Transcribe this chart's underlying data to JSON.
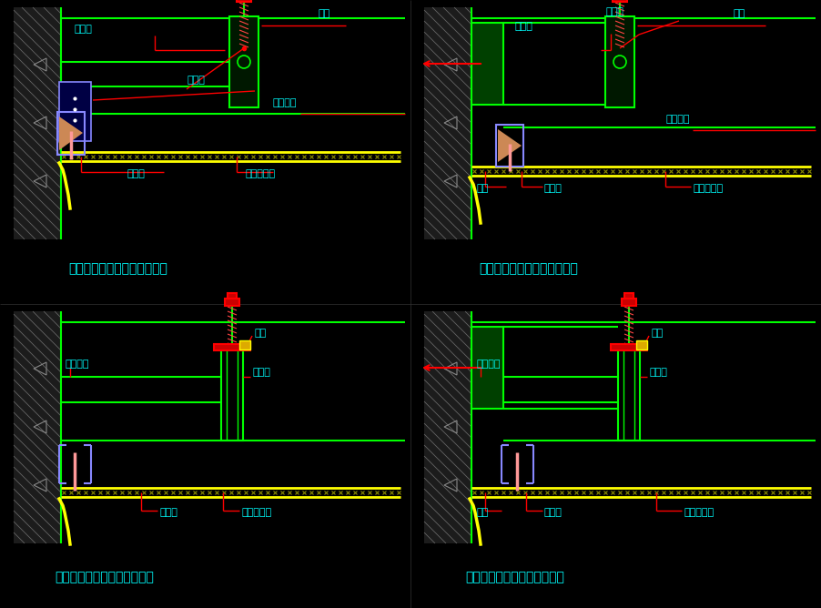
{
  "bg_color": "#000000",
  "wall_color": "#00ff00",
  "red": "#ff0000",
  "yellow": "#ffff00",
  "cyan": "#00ffff",
  "blue_bracket": "#8888ff",
  "pink": "#ff9999",
  "dark_red": "#cc0000",
  "titles": [
    "吊顶阴角处理（垂直主龙骨）",
    "吊顶阴角处理（垂直主龙骨）",
    "吊顶阴角处理（平行主龙骨）",
    "吊顶阴角处理（平行主龙骨）"
  ],
  "labels_tl": {
    "zhulonggu": "主龙骨",
    "dianjian": "吊件",
    "lianjiejian": "连接件",
    "tanhuanglonggu": "撑撑龙骨",
    "cilonggu": "次龙骨",
    "zmsb": "纸面石膏板"
  },
  "labels_tr": {
    "zhulonggu": "主龙骨",
    "dianjian": "吊件",
    "lianjiejian": "连接件",
    "tanhuanglonggu": "撑撑龙骨",
    "mujin": "木档",
    "cilonggu": "次龙骨",
    "zmsb": "纸面石膏板"
  },
  "labels_bl": {
    "tanhuanglonggu": "撑撑龙骨",
    "zhulonggu": "主龙骨",
    "dianjian": "吊件",
    "cilonggu": "次龙骨",
    "zmsb": "纸面石膏板"
  },
  "labels_br": {
    "tanhuanglonggu": "撑撑龙骨",
    "zhulonggu": "主龙骨",
    "dianjian": "吊件",
    "mujin": "木档",
    "cilonggu": "次龙骨",
    "zmsb": "纸面石膏板"
  }
}
